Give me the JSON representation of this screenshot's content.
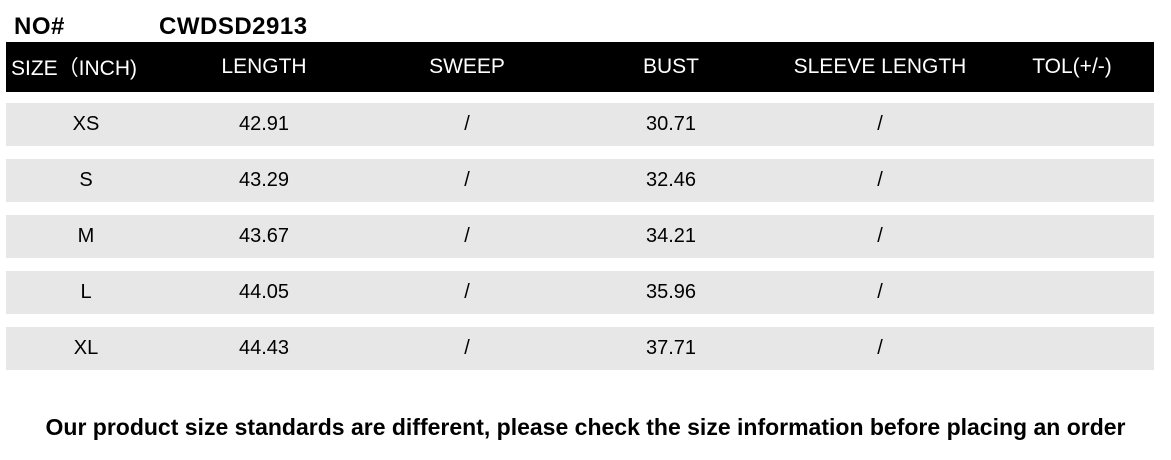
{
  "product": {
    "no_label": "NO#",
    "no_value": "CWDSD2913"
  },
  "chart_data": {
    "type": "table",
    "columns": [
      "SIZE（INCH)",
      "LENGTH",
      "SWEEP",
      "BUST",
      "SLEEVE LENGTH",
      "TOL(+/-)"
    ],
    "rows": [
      [
        "XS",
        "42.91",
        "/",
        "30.71",
        "/",
        ""
      ],
      [
        "S",
        "43.29",
        "/",
        "32.46",
        "/",
        ""
      ],
      [
        "M",
        "43.67",
        "/",
        "34.21",
        "/",
        ""
      ],
      [
        "L",
        "44.05",
        "/",
        "35.96",
        "/",
        ""
      ],
      [
        "XL",
        "44.43",
        "/",
        "37.71",
        "/",
        ""
      ]
    ],
    "layout": {
      "header_background": "#000000",
      "header_text_color": "#ffffff",
      "row_background": "#e7e7e7",
      "row_gap_background": "#ffffff"
    }
  },
  "note": "Our product size standards are different, please check the size information before placing an order",
  "colors": {
    "header_bg": "#000000",
    "header_text": "#ffffff",
    "row_bg": "#e7e7e7",
    "body_text": "#000000",
    "page_bg": "#ffffff"
  }
}
